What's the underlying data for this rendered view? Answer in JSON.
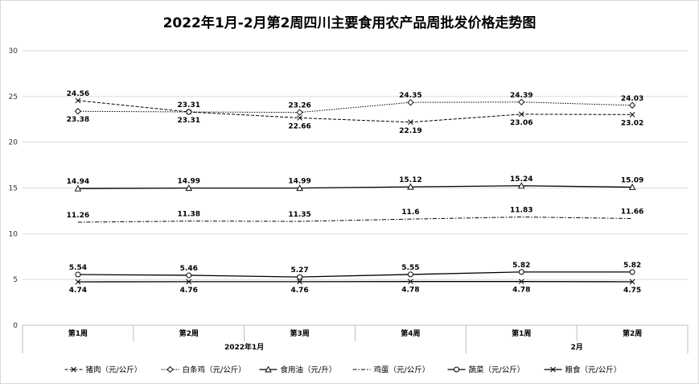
{
  "chart_data": {
    "type": "line",
    "title": "2022年1月-2月第2周四川主要食用农产品周批发价格走势图",
    "categories": [
      "第1周",
      "第2周",
      "第3周",
      "第4周",
      "第1周",
      "第2周"
    ],
    "category_groups": [
      {
        "label": "2022年1月",
        "span": 4
      },
      {
        "label": "2月",
        "span": 2
      }
    ],
    "ylim": [
      0,
      30
    ],
    "yticks": [
      0,
      5,
      10,
      15,
      20,
      25,
      30
    ],
    "grid": true,
    "legend_position": "bottom",
    "series": [
      {
        "name": "猪肉（元/公斤）",
        "values": [
          24.56,
          23.31,
          22.66,
          22.19,
          23.06,
          23.02
        ],
        "marker": "x",
        "dash": "dash",
        "label_pos": [
          "above",
          "above",
          "below",
          "below",
          "below",
          "below"
        ]
      },
      {
        "name": "白条鸡（元/公斤）",
        "values": [
          23.38,
          23.31,
          23.26,
          24.35,
          24.39,
          24.03
        ],
        "marker": "diamond",
        "dash": "dot",
        "label_pos": [
          "below",
          "below",
          "above",
          "above",
          "above",
          "above"
        ]
      },
      {
        "name": "食用油（元/升）",
        "values": [
          14.94,
          14.99,
          14.99,
          15.12,
          15.24,
          15.09
        ],
        "marker": "triangle",
        "dash": "solid",
        "label_pos": [
          "above",
          "above",
          "above",
          "above",
          "above",
          "above"
        ]
      },
      {
        "name": "鸡蛋（元/公斤）",
        "values": [
          11.26,
          11.38,
          11.35,
          11.6,
          11.83,
          11.66
        ],
        "marker": "none",
        "dash": "dashdot",
        "label_pos": [
          "above",
          "above",
          "above",
          "above",
          "above",
          "above"
        ]
      },
      {
        "name": "蔬菜（元/公斤）",
        "values": [
          5.54,
          5.46,
          5.27,
          5.55,
          5.82,
          5.82
        ],
        "marker": "circle",
        "dash": "solid",
        "label_pos": [
          "above",
          "above",
          "above",
          "above",
          "above",
          "above"
        ]
      },
      {
        "name": "粮食（元/公斤）",
        "values": [
          4.74,
          4.76,
          4.76,
          4.78,
          4.78,
          4.75
        ],
        "marker": "x",
        "dash": "solid",
        "label_pos": [
          "below",
          "below",
          "below",
          "below",
          "below",
          "below"
        ]
      }
    ],
    "colors": {
      "line": "#000000",
      "grid": "#d9d9d9",
      "axis": "#bfbfbf"
    }
  }
}
